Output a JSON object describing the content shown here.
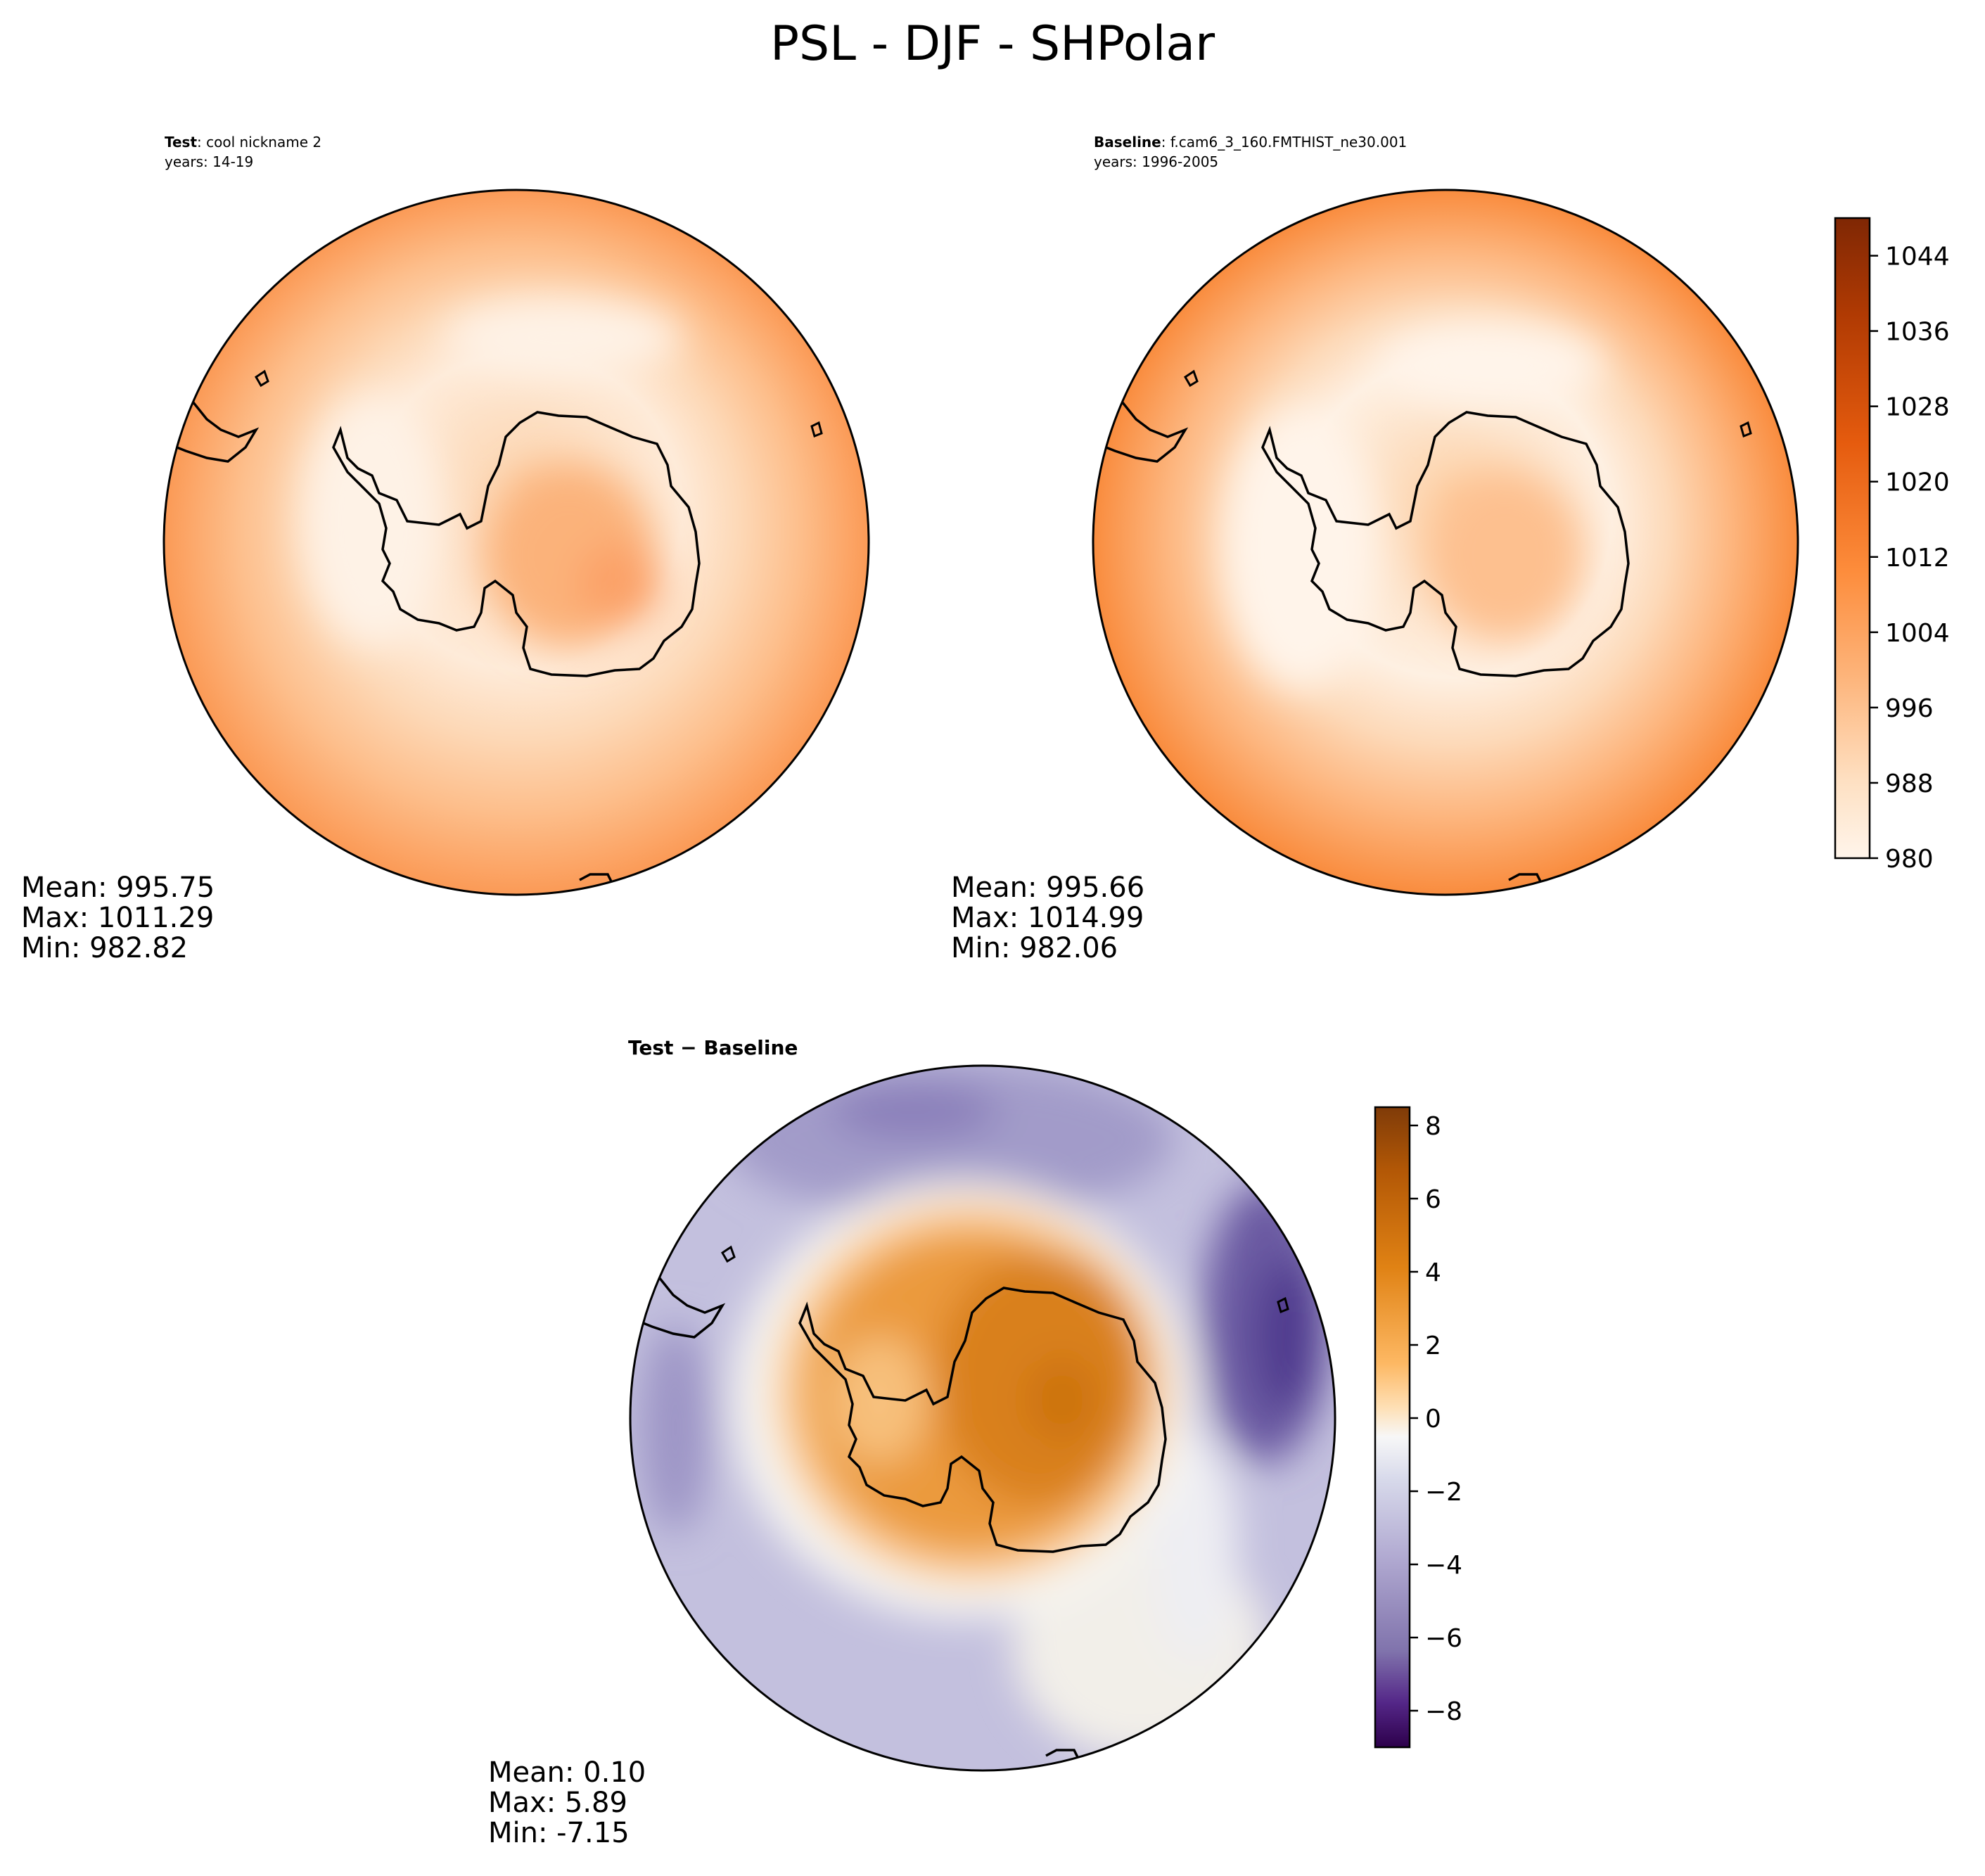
{
  "title": "PSL - DJF - SHPolar",
  "panels": [
    {
      "id": "test",
      "label_bold": "Test",
      "label_rest": ": cool nickname 2",
      "years": "years: 14-19",
      "stats": [
        "Mean: 995.75",
        "Max: 1011.29",
        "Min: 982.82"
      ]
    },
    {
      "id": "baseline",
      "label_bold": "Baseline",
      "label_rest": ": f.cam6_3_160.FMTHIST_ne30.001",
      "years": "years: 1996-2005",
      "stats": [
        "Mean: 995.66",
        "Max: 1014.99",
        "Min: 982.06"
      ]
    },
    {
      "id": "diff",
      "title": "Test − Baseline",
      "stats": [
        "Mean:  0.10",
        "Max:  5.89",
        "Min: -7.15"
      ]
    }
  ],
  "chart_data": [
    {
      "type": "heatmap",
      "name": "Test",
      "projection": "south-polar-stereographic",
      "colormap": "Oranges",
      "colorbar": {
        "range": [
          980,
          1048
        ],
        "ticks": [
          980,
          988,
          996,
          1004,
          1012,
          1020,
          1028,
          1036,
          1044
        ],
        "tick_labels": [
          "980",
          "988",
          "996",
          "1004",
          "1012",
          "1020",
          "1028",
          "1036",
          "1044"
        ]
      },
      "stats": {
        "mean": 995.75,
        "max": 1011.29,
        "min": 982.82
      }
    },
    {
      "type": "heatmap",
      "name": "Baseline",
      "projection": "south-polar-stereographic",
      "colormap": "Oranges",
      "stats": {
        "mean": 995.66,
        "max": 1014.99,
        "min": 982.06
      }
    },
    {
      "type": "heatmap",
      "name": "Test - Baseline",
      "projection": "south-polar-stereographic",
      "colormap": "PuOr_r",
      "colorbar": {
        "range": [
          -9,
          8.5
        ],
        "ticks": [
          -8,
          -6,
          -4,
          -2,
          0,
          2,
          4,
          6,
          8
        ],
        "tick_labels": [
          "−8",
          "−6",
          "−4",
          "−2",
          "0",
          "2",
          "4",
          "6",
          "8"
        ]
      },
      "stats": {
        "mean": 0.1,
        "max": 5.89,
        "min": -7.15
      }
    }
  ]
}
